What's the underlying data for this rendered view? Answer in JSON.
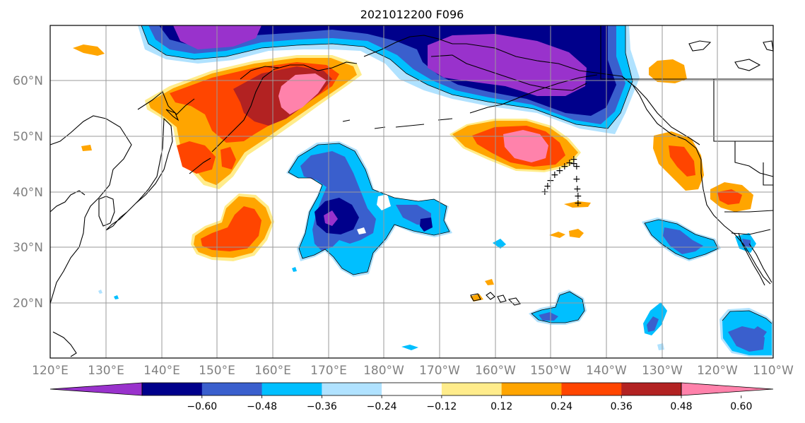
{
  "title": "2021012200 F096",
  "lat_labels": [
    "60°N",
    "50°N",
    "40°N",
    "30°N",
    "20°N"
  ],
  "lon_labels": [
    "120°E",
    "130°E",
    "140°E",
    "150°E",
    "160°E",
    "170°E",
    "180°W",
    "170°W",
    "160°W",
    "150°W",
    "140°W",
    "130°W",
    "120°W",
    "110°W"
  ],
  "colorbar": {
    "colors": [
      "#9932cc",
      "#00008b",
      "#3a5fcd",
      "#00bfff",
      "#b0e2ff",
      "#ffffff",
      "#ffec8b",
      "#ffa500",
      "#ff4500",
      "#b22222",
      "#ff82ab"
    ],
    "tick_labels": [
      "-0.60",
      "-0.48",
      "-0.36",
      "-0.24",
      "-0.12",
      "0.12",
      "0.24",
      "0.36",
      "0.48",
      "0.60"
    ],
    "extend": "both"
  }
}
